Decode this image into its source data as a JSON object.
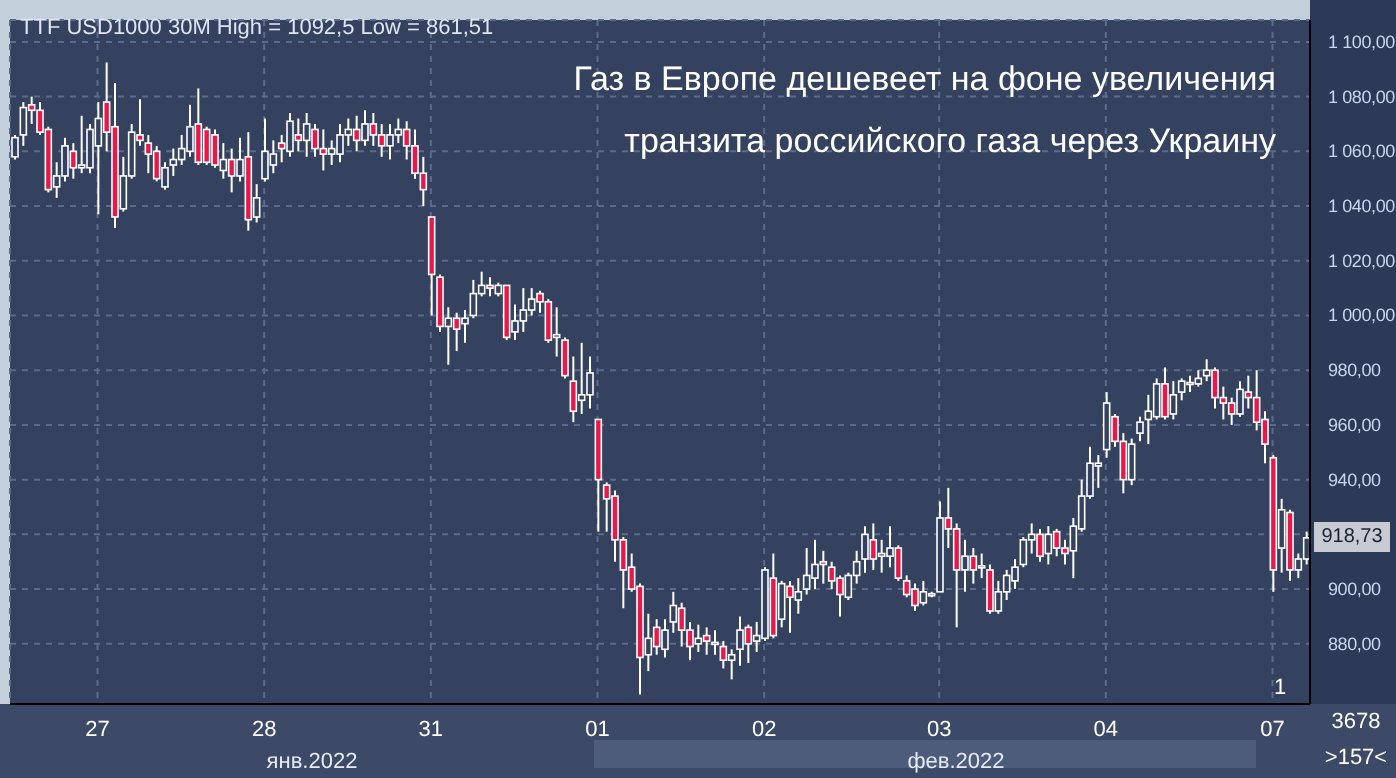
{
  "chart_data": {
    "type": "candlestick",
    "title": "Газ в Европе дешевеет на фоне увеличения транзита российского газа через Украину",
    "categories": [
      null,
      null,
      null,
      null,
      null,
      null,
      null,
      null,
      null,
      null,
      "27",
      null,
      null,
      null,
      null,
      null,
      null,
      null,
      null,
      null,
      null,
      null,
      null,
      null,
      null,
      null,
      null,
      null,
      null,
      null,
      "28",
      null,
      null,
      null,
      null,
      null,
      null,
      null,
      null,
      null,
      null,
      null,
      null,
      null,
      null,
      null,
      null,
      null,
      null,
      null,
      "31",
      null,
      null,
      null,
      null,
      null,
      null,
      null,
      null,
      null,
      null,
      null,
      null,
      null,
      null,
      null,
      null,
      null,
      null,
      null,
      "01",
      null,
      null,
      null,
      null,
      null,
      null,
      null,
      null,
      null,
      null,
      null,
      null,
      null,
      null,
      null,
      null,
      null,
      null,
      null,
      "02",
      null,
      null,
      null,
      null,
      null,
      null,
      null,
      null,
      null,
      null,
      null,
      null,
      null,
      null,
      null,
      null,
      null,
      null,
      null,
      null,
      "03",
      null,
      null,
      null,
      null,
      null,
      null,
      null,
      null,
      null,
      null,
      null,
      null,
      null,
      null,
      null,
      null,
      null,
      null,
      null,
      "04",
      null,
      null,
      null,
      null,
      null,
      null,
      null,
      null,
      null,
      null,
      null,
      null,
      null,
      null,
      null,
      null,
      null,
      null,
      null,
      "07",
      null,
      null,
      null,
      null
    ],
    "ohlc": [
      [
        1058,
        1066,
        1057,
        1065
      ],
      [
        1066,
        1078,
        1062,
        1076
      ],
      [
        1077,
        1080,
        1070,
        1075
      ],
      [
        1075,
        1078,
        1066,
        1067
      ],
      [
        1068,
        1069,
        1045,
        1046
      ],
      [
        1047,
        1056,
        1043,
        1051
      ],
      [
        1051,
        1065,
        1049,
        1062
      ],
      [
        1060,
        1063,
        1050,
        1054
      ],
      [
        1054,
        1073,
        1052,
        1055
      ],
      [
        1054,
        1070,
        1052,
        1068
      ],
      [
        1062,
        1078,
        1037,
        1072
      ],
      [
        1078,
        1092.5,
        1060,
        1067
      ],
      [
        1069,
        1085,
        1032,
        1036
      ],
      [
        1039,
        1058,
        1038,
        1051
      ],
      [
        1051,
        1070,
        1050,
        1067
      ],
      [
        1066,
        1079,
        1062,
        1064
      ],
      [
        1063,
        1066,
        1052,
        1059
      ],
      [
        1060,
        1062,
        1049,
        1050
      ],
      [
        1047,
        1056,
        1046,
        1054
      ],
      [
        1055,
        1061,
        1051,
        1057
      ],
      [
        1057,
        1066,
        1055,
        1061
      ],
      [
        1060,
        1077,
        1058,
        1069
      ],
      [
        1070,
        1083,
        1055,
        1056
      ],
      [
        1068,
        1069,
        1055,
        1056
      ],
      [
        1066,
        1068,
        1054,
        1055
      ],
      [
        1053,
        1063,
        1050,
        1057
      ],
      [
        1057,
        1061,
        1045,
        1051
      ],
      [
        1051,
        1065,
        1049,
        1057
      ],
      [
        1058,
        1067,
        1031,
        1035
      ],
      [
        1036,
        1048,
        1034,
        1043
      ],
      [
        1050,
        1072,
        1049,
        1060
      ],
      [
        1055,
        1064,
        1052,
        1059
      ],
      [
        1063,
        1066,
        1056,
        1061
      ],
      [
        1060,
        1074,
        1058,
        1071
      ],
      [
        1066,
        1072,
        1060,
        1064
      ],
      [
        1064,
        1074,
        1058,
        1070
      ],
      [
        1068,
        1070,
        1058,
        1061
      ],
      [
        1061,
        1068,
        1053,
        1059
      ],
      [
        1059,
        1064,
        1055,
        1061
      ],
      [
        1059,
        1070,
        1056,
        1066
      ],
      [
        1066,
        1072,
        1062,
        1068
      ],
      [
        1068,
        1073,
        1060,
        1064
      ],
      [
        1064,
        1075,
        1062,
        1070
      ],
      [
        1070,
        1074,
        1062,
        1066
      ],
      [
        1066,
        1070,
        1058,
        1062
      ],
      [
        1062,
        1070,
        1057,
        1066
      ],
      [
        1066,
        1072,
        1063,
        1068
      ],
      [
        1068,
        1071,
        1057,
        1062
      ],
      [
        1062,
        1068,
        1050,
        1052
      ],
      [
        1052,
        1058,
        1040,
        1046
      ],
      [
        1036,
        1036,
        1000,
        1015
      ],
      [
        1014,
        1015,
        994,
        996
      ],
      [
        996,
        1003,
        982,
        999
      ],
      [
        999,
        1001,
        987,
        995
      ],
      [
        997,
        1002,
        990,
        999
      ],
      [
        1000,
        1013,
        999,
        1008
      ],
      [
        1008,
        1016,
        1007,
        1011
      ],
      [
        1011,
        1014,
        1007,
        1010
      ],
      [
        1008,
        1012,
        1007,
        1011
      ],
      [
        1011,
        1011,
        991,
        992
      ],
      [
        994,
        1004,
        991,
        998
      ],
      [
        998,
        1010,
        994,
        1002
      ],
      [
        1002,
        1010,
        1000,
        1006
      ],
      [
        1008,
        1009,
        1001,
        1005
      ],
      [
        1005,
        1006,
        990,
        991
      ],
      [
        992,
        1003,
        985,
        993
      ],
      [
        991,
        992,
        977,
        978
      ],
      [
        976,
        985,
        961,
        965
      ],
      [
        969,
        990,
        964,
        971
      ],
      [
        971,
        985,
        966,
        979
      ],
      [
        962,
        962,
        921,
        940
      ],
      [
        938,
        939,
        921,
        933
      ],
      [
        934,
        936,
        910,
        918
      ],
      [
        918,
        919,
        893,
        907
      ],
      [
        908,
        913,
        899,
        900
      ],
      [
        901,
        902,
        861.51,
        875
      ],
      [
        876,
        891,
        870,
        882
      ],
      [
        886,
        889,
        876,
        879
      ],
      [
        878,
        889,
        875,
        885
      ],
      [
        888,
        899,
        884,
        894
      ],
      [
        893,
        895,
        879,
        885
      ],
      [
        885,
        888,
        874,
        879
      ],
      [
        880,
        887,
        877,
        882
      ],
      [
        883,
        886,
        876,
        881
      ],
      [
        880,
        885,
        876,
        880.5
      ],
      [
        879,
        881,
        871,
        874
      ],
      [
        874,
        878,
        867,
        876
      ],
      [
        878,
        890,
        872,
        885
      ],
      [
        886,
        887,
        873,
        880
      ],
      [
        881,
        888,
        877,
        883
      ],
      [
        882,
        908,
        881,
        907
      ],
      [
        904,
        913,
        882,
        883
      ],
      [
        889,
        903,
        886,
        902
      ],
      [
        901,
        903,
        884,
        897
      ],
      [
        896,
        904,
        891,
        899
      ],
      [
        900,
        915,
        898,
        905
      ],
      [
        904,
        918,
        900,
        909
      ],
      [
        910,
        914,
        902,
        909
      ],
      [
        908,
        910,
        900,
        903
      ],
      [
        904,
        905,
        890,
        898
      ],
      [
        897,
        906,
        896,
        905
      ],
      [
        905,
        914,
        902,
        910
      ],
      [
        911,
        923,
        906,
        920
      ],
      [
        918,
        924,
        907,
        911
      ],
      [
        912,
        918,
        906,
        913
      ],
      [
        912,
        923,
        908,
        915
      ],
      [
        915,
        916,
        903,
        904
      ],
      [
        903,
        905,
        897,
        898
      ],
      [
        900,
        902,
        892,
        894
      ],
      [
        895,
        903,
        894,
        899
      ],
      [
        898,
        899,
        897,
        898.3
      ],
      [
        899,
        932,
        899,
        926
      ],
      [
        926,
        937,
        915,
        922
      ],
      [
        922,
        924,
        886,
        907
      ],
      [
        907,
        918,
        899,
        912
      ],
      [
        912,
        915,
        902,
        907
      ],
      [
        908,
        913,
        904,
        908.5
      ],
      [
        907,
        909,
        891,
        892
      ],
      [
        892,
        903,
        891,
        899
      ],
      [
        899,
        907,
        896,
        905
      ],
      [
        903,
        911,
        900,
        908
      ],
      [
        909,
        919,
        908,
        918
      ],
      [
        918,
        924,
        913,
        920
      ],
      [
        920,
        922,
        910,
        912
      ],
      [
        913,
        923,
        909,
        920
      ],
      [
        921,
        922,
        912,
        915
      ],
      [
        915,
        918,
        909,
        913
      ],
      [
        914,
        926,
        904,
        923
      ],
      [
        922,
        940,
        921,
        934
      ],
      [
        934,
        952,
        933,
        946
      ],
      [
        945,
        949,
        937,
        946
      ],
      [
        951,
        972,
        948,
        968
      ],
      [
        963,
        964,
        952,
        954
      ],
      [
        954,
        957,
        935,
        940
      ],
      [
        940,
        955,
        938,
        953
      ],
      [
        957,
        963,
        954,
        961
      ],
      [
        962,
        971,
        953,
        965
      ],
      [
        963,
        977,
        962,
        975
      ],
      [
        975,
        981,
        962,
        963
      ],
      [
        964,
        976,
        962,
        971
      ],
      [
        972,
        977,
        969,
        976
      ],
      [
        975,
        978,
        972,
        975.5
      ],
      [
        975,
        980,
        974,
        977
      ],
      [
        978,
        984,
        976,
        980
      ],
      [
        980,
        981,
        966,
        970
      ],
      [
        970,
        974,
        962,
        968
      ],
      [
        968,
        970,
        960,
        964
      ],
      [
        964,
        976,
        963,
        973
      ],
      [
        972,
        978,
        966,
        970
      ],
      [
        970,
        980,
        958,
        961
      ],
      [
        962,
        965,
        946,
        953
      ],
      [
        948,
        949,
        899,
        907
      ],
      [
        915,
        933,
        906,
        929
      ],
      [
        928,
        929,
        903,
        907
      ],
      [
        907,
        913,
        904,
        911
      ],
      [
        911,
        921,
        909,
        918.73
      ]
    ],
    "ylim": [
      858,
      1108
    ],
    "yticks": [
      {
        "value": 880,
        "label": "880,00"
      },
      {
        "value": 900,
        "label": "900,00"
      },
      {
        "value": 920,
        "label": null
      },
      {
        "value": 940,
        "label": "940,00"
      },
      {
        "value": 960,
        "label": "960,00"
      },
      {
        "value": 980,
        "label": "980,00"
      },
      {
        "value": 1000,
        "label": "1 000,00"
      },
      {
        "value": 1020,
        "label": "1 020,00"
      },
      {
        "value": 1040,
        "label": "1 040,00"
      },
      {
        "value": 1060,
        "label": "1 060,00"
      },
      {
        "value": 1080,
        "label": "1 080,00"
      },
      {
        "value": 1100,
        "label": "1 100,00"
      }
    ],
    "grid": true,
    "annotations": [
      "TTF USD1000 30M High = 1092,5 Low = 861,51",
      "янв.2022",
      "фев.2022",
      "3678",
      ">157<",
      "1",
      {
        "text": "918,73",
        "y": 918.73
      }
    ]
  }
}
